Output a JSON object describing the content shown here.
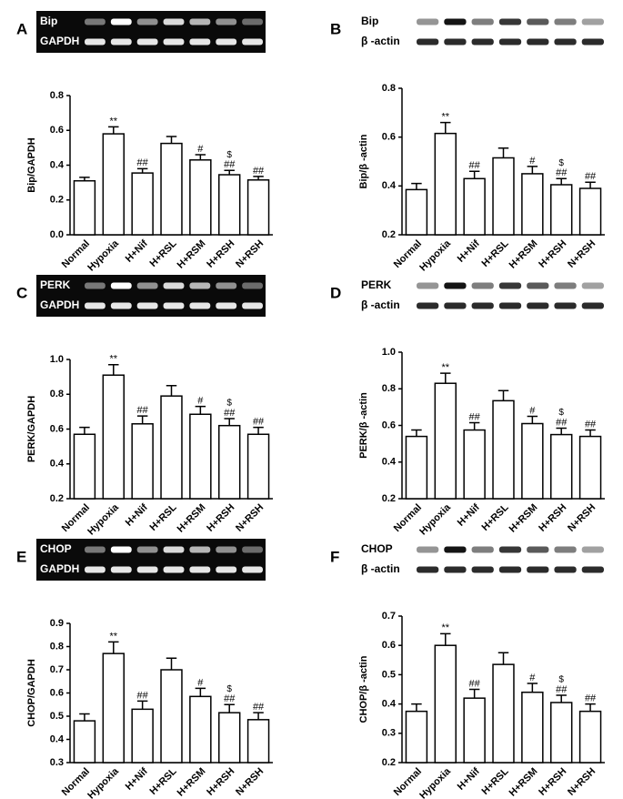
{
  "chart_data": [
    {
      "type": "bar",
      "panel": "A",
      "blots": [
        "Bip",
        "GAPDH"
      ],
      "ylabel": "Bip/GAPDH",
      "categories": [
        "Normal",
        "Hypoxia",
        "H+Nif",
        "H+RSL",
        "H+RSM",
        "H+RSH",
        "N+RSH"
      ],
      "values": [
        0.31,
        0.58,
        0.355,
        0.525,
        0.43,
        0.345,
        0.315
      ],
      "errors": [
        0.02,
        0.04,
        0.025,
        0.04,
        0.03,
        0.025,
        0.02
      ],
      "annotations": [
        [],
        [
          "**"
        ],
        [
          "##"
        ],
        [],
        [
          "#"
        ],
        [
          "$",
          "##"
        ],
        [
          "##"
        ]
      ],
      "ylim": [
        0,
        0.8
      ],
      "yticks": [
        {
          "value": 0,
          "label": "0.0"
        },
        0.2,
        0.4,
        0.6,
        0.8
      ],
      "color": "#ffffff"
    },
    {
      "type": "bar",
      "panel": "B",
      "blots": [
        "Bip",
        "β -actin"
      ],
      "ylabel": "Bip/β -actin",
      "categories": [
        "Normal",
        "Hypoxia",
        "H+Nif",
        "H+RSL",
        "H+RSM",
        "H+RSH",
        "N+RSH"
      ],
      "values": [
        0.385,
        0.615,
        0.43,
        0.515,
        0.45,
        0.405,
        0.39
      ],
      "errors": [
        0.025,
        0.045,
        0.03,
        0.04,
        0.03,
        0.025,
        0.025
      ],
      "annotations": [
        [],
        [
          "**"
        ],
        [
          "##"
        ],
        [],
        [
          "#"
        ],
        [
          "$",
          "##"
        ],
        [
          "##"
        ]
      ],
      "ylim": [
        0.2,
        0.8
      ],
      "yticks": [
        0.2,
        0.4,
        0.6,
        0.8
      ],
      "color": "#ffffff"
    },
    {
      "type": "bar",
      "panel": "C",
      "blots": [
        "PERK",
        "GAPDH"
      ],
      "ylabel": "PERK/GAPDH",
      "categories": [
        "Normal",
        "Hypoxia",
        "H+Nif",
        "H+RSL",
        "H+RSM",
        "H+RSH",
        "N+RSH"
      ],
      "values": [
        0.57,
        0.91,
        0.63,
        0.79,
        0.685,
        0.62,
        0.57
      ],
      "errors": [
        0.04,
        0.06,
        0.045,
        0.06,
        0.045,
        0.04,
        0.04
      ],
      "annotations": [
        [],
        [
          "**"
        ],
        [
          "##"
        ],
        [],
        [
          "#"
        ],
        [
          "$",
          "##"
        ],
        [
          "##"
        ]
      ],
      "ylim": [
        0.2,
        1.0
      ],
      "yticks": [
        0.2,
        0.4,
        0.6,
        0.8,
        {
          "value": 1.0,
          "label": "1.0"
        }
      ],
      "color": "#ffffff"
    },
    {
      "type": "bar",
      "panel": "D",
      "blots": [
        "PERK",
        "β -actin"
      ],
      "ylabel": "PERK/β -actin",
      "categories": [
        "Normal",
        "Hypoxia",
        "H+Nif",
        "H+RSL",
        "H+RSM",
        "H+RSH",
        "N+RSH"
      ],
      "values": [
        0.54,
        0.83,
        0.575,
        0.735,
        0.61,
        0.55,
        0.54
      ],
      "errors": [
        0.035,
        0.055,
        0.04,
        0.055,
        0.04,
        0.035,
        0.035
      ],
      "annotations": [
        [],
        [
          "**"
        ],
        [
          "##"
        ],
        [],
        [
          "#"
        ],
        [
          "$",
          "##"
        ],
        [
          "##"
        ]
      ],
      "ylim": [
        0.2,
        1.0
      ],
      "yticks": [
        0.2,
        0.4,
        0.6,
        0.8,
        {
          "value": 1.0,
          "label": "1.0"
        }
      ],
      "color": "#ffffff"
    },
    {
      "type": "bar",
      "panel": "E",
      "blots": [
        "CHOP",
        "GAPDH"
      ],
      "ylabel": "CHOP/GAPDH",
      "categories": [
        "Normal",
        "Hypoxia",
        "H+Nif",
        "H+RSL",
        "H+RSM",
        "H+RSH",
        "N+RSH"
      ],
      "values": [
        0.48,
        0.77,
        0.53,
        0.7,
        0.585,
        0.515,
        0.485
      ],
      "errors": [
        0.03,
        0.05,
        0.035,
        0.05,
        0.035,
        0.035,
        0.03
      ],
      "annotations": [
        [],
        [
          "**"
        ],
        [
          "##"
        ],
        [],
        [
          "#"
        ],
        [
          "$",
          "##"
        ],
        [
          "##"
        ]
      ],
      "ylim": [
        0.3,
        0.9
      ],
      "yticks": [
        0.3,
        0.4,
        0.5,
        0.6,
        0.7,
        0.8,
        0.9
      ],
      "color": "#ffffff"
    },
    {
      "type": "bar",
      "panel": "F",
      "blots": [
        "CHOP",
        "β -actin"
      ],
      "ylabel": "CHOP/β -actin",
      "categories": [
        "Normal",
        "Hypoxia",
        "H+Nif",
        "H+RSL",
        "H+RSM",
        "H+RSH",
        "N+RSH"
      ],
      "values": [
        0.375,
        0.6,
        0.42,
        0.535,
        0.44,
        0.405,
        0.375
      ],
      "errors": [
        0.025,
        0.04,
        0.03,
        0.04,
        0.03,
        0.025,
        0.025
      ],
      "annotations": [
        [],
        [
          "**"
        ],
        [
          "##"
        ],
        [],
        [
          "#"
        ],
        [
          "$",
          "##"
        ],
        [
          "##"
        ]
      ],
      "ylim": [
        0.2,
        0.7
      ],
      "yticks": [
        0.2,
        0.3,
        0.4,
        0.5,
        0.6,
        0.7
      ],
      "color": "#ffffff"
    }
  ]
}
